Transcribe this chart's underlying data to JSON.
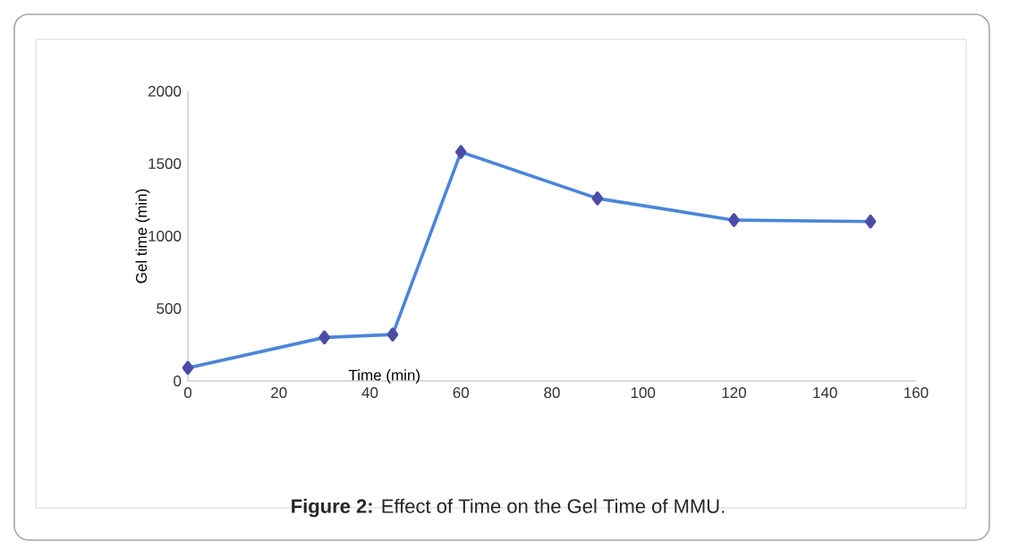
{
  "chart_data": {
    "type": "line",
    "title": "**Figure 2:** Effect of Time on the Gel Time of MMU.",
    "xlabel": "Time (min)",
    "ylabel": "Gel time (min)",
    "x": [
      0,
      30,
      45,
      60,
      90,
      120,
      150
    ],
    "series": [
      {
        "color": "#4a86d8",
        "values": [
          90,
          300,
          320,
          1580,
          1260,
          1110,
          1100
        ]
      }
    ],
    "xlim": [
      0,
      160
    ],
    "xticks": [
      0,
      20,
      40,
      60,
      80,
      100,
      120,
      140,
      160
    ],
    "ylim": [
      0,
      2000
    ],
    "yticks": [
      0,
      500,
      1000,
      1500,
      2000
    ],
    "marker": "diamond",
    "grid": false
  }
}
